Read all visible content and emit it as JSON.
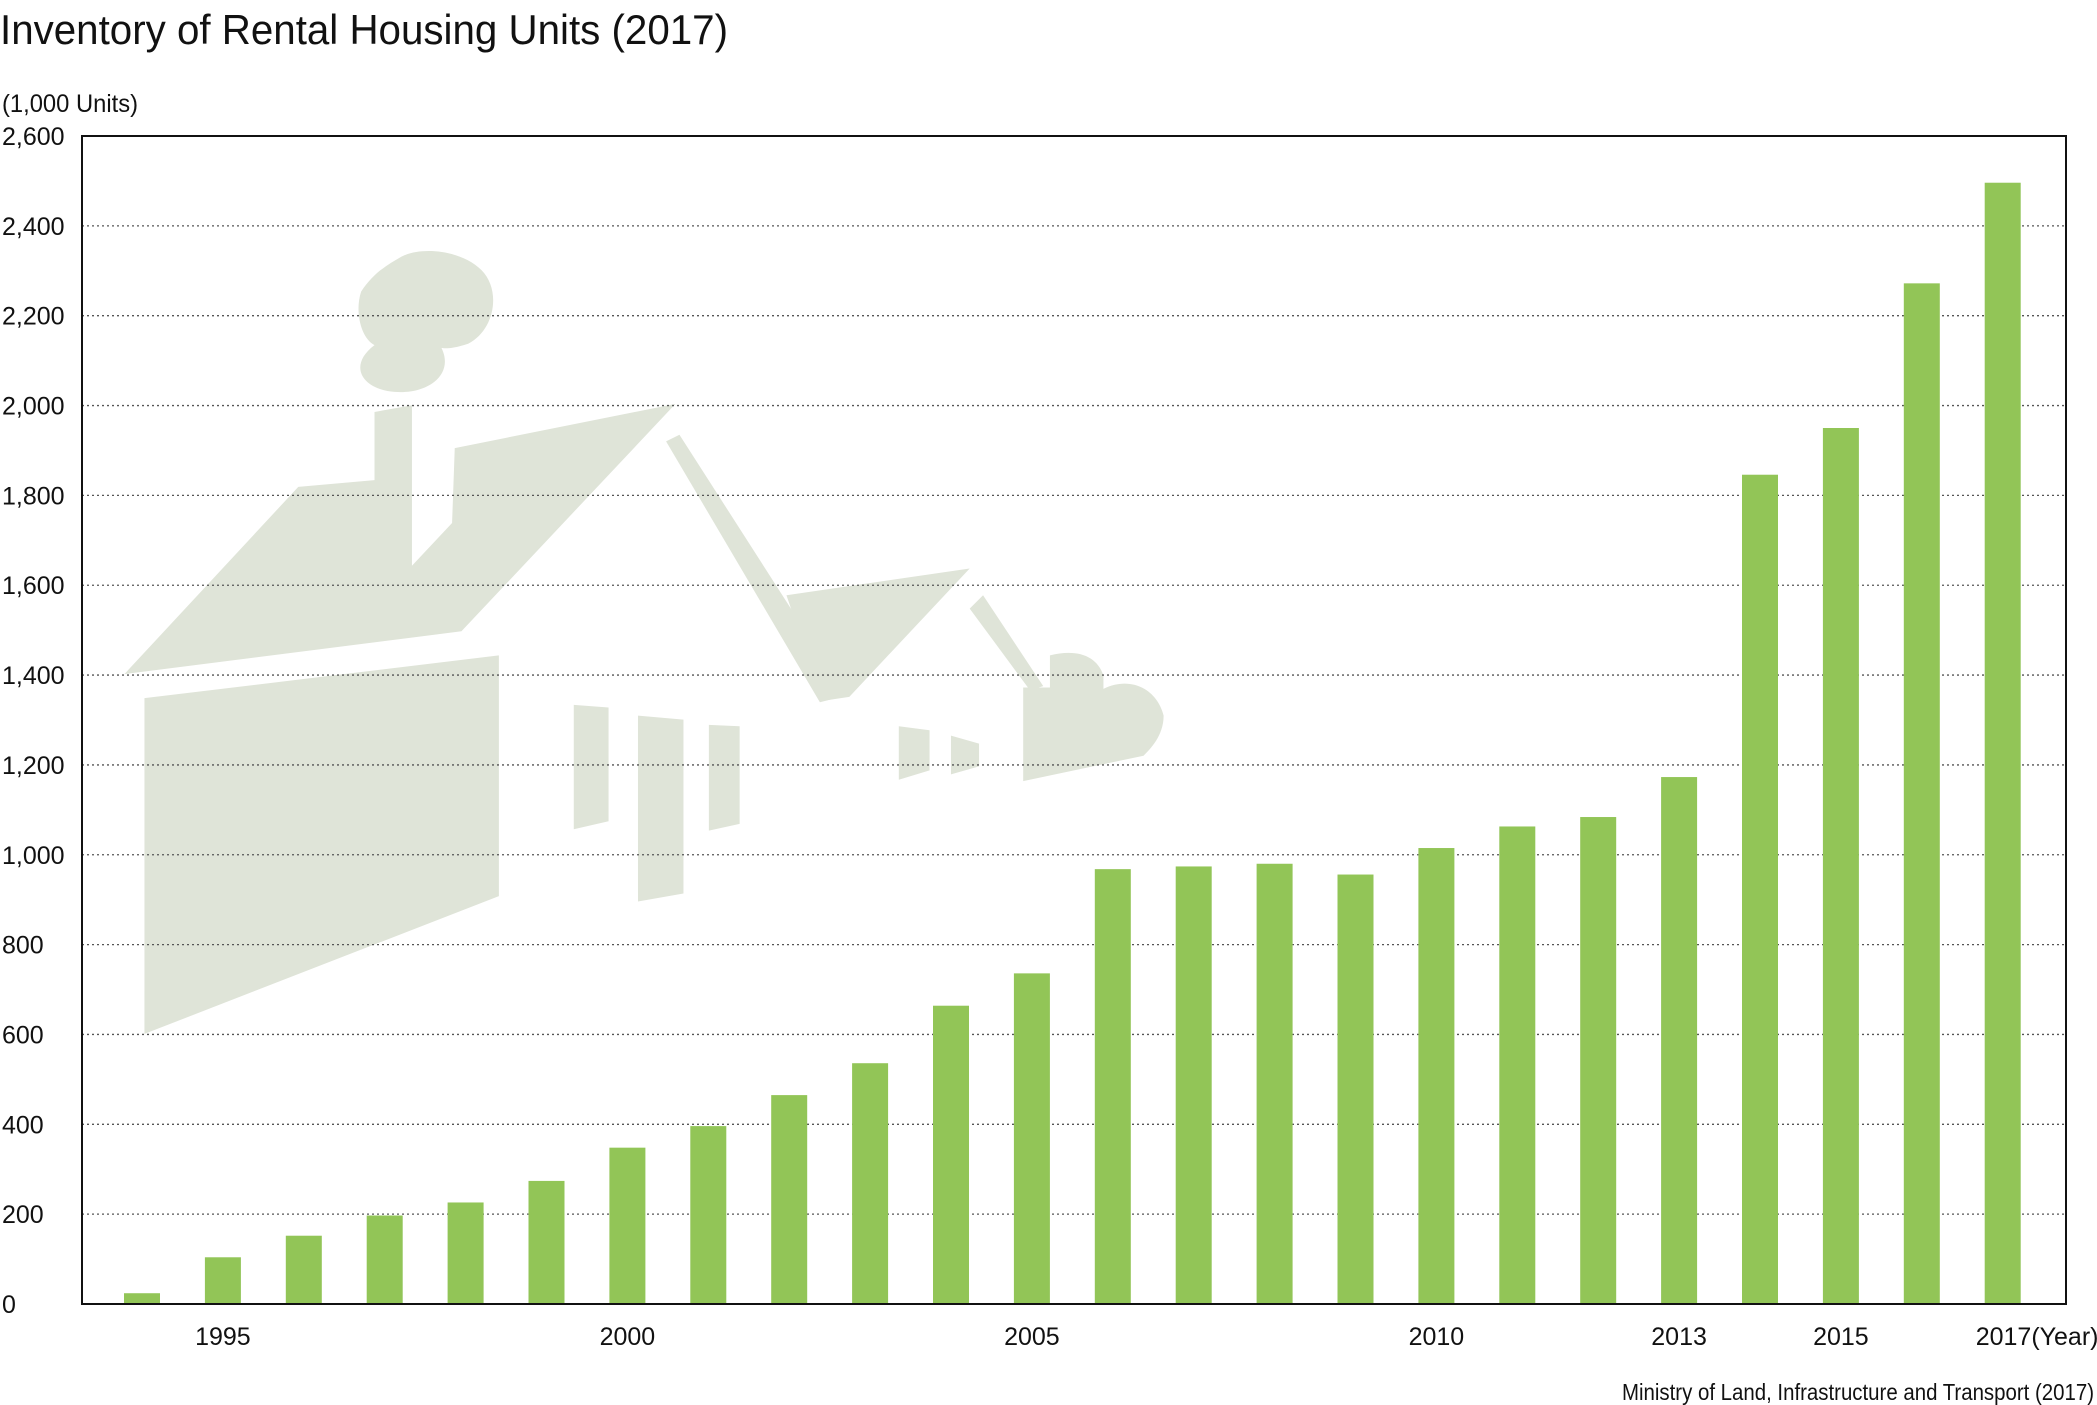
{
  "chart_data": {
    "type": "bar",
    "title": "Inventory of Rental Housing Units (2017)",
    "ylabel": "(1,000 Units)",
    "xlabel": "(Year)",
    "source": "Ministry of Land, Infrastructure and Transport (2017)",
    "ylim": [
      0,
      2600
    ],
    "yticks": [
      0,
      200,
      400,
      600,
      800,
      1000,
      1200,
      1400,
      1600,
      1800,
      2000,
      2200,
      2400,
      2600
    ],
    "ytick_labels": [
      "0",
      "200",
      "400",
      "600",
      "800",
      "1,000",
      "1,200",
      "1,400",
      "1,600",
      "1,800",
      "2,000",
      "2,200",
      "2,400",
      "2,600"
    ],
    "grid": "horizontal dotted",
    "categories": [
      1994,
      1995,
      1996,
      1997,
      1998,
      1999,
      2000,
      2001,
      2002,
      2003,
      2004,
      2005,
      2006,
      2007,
      2008,
      2009,
      2010,
      2011,
      2012,
      2013,
      2014,
      2015,
      2016,
      2017
    ],
    "xtick_labels": {
      "1995": "1995",
      "2000": "2000",
      "2005": "2005",
      "2010": "2010",
      "2013": "2013",
      "2015": "2015",
      "2017": "2017"
    },
    "values": [
      24,
      104,
      152,
      197,
      226,
      274,
      348,
      396,
      465,
      536,
      664,
      736,
      968,
      974,
      980,
      956,
      1015,
      1063,
      1084,
      1173,
      1846,
      1950,
      2272,
      2496
    ],
    "bar_color": "#92c557",
    "background_illustration": "house-silhouette",
    "illustration_color": "#dfe4d8"
  }
}
